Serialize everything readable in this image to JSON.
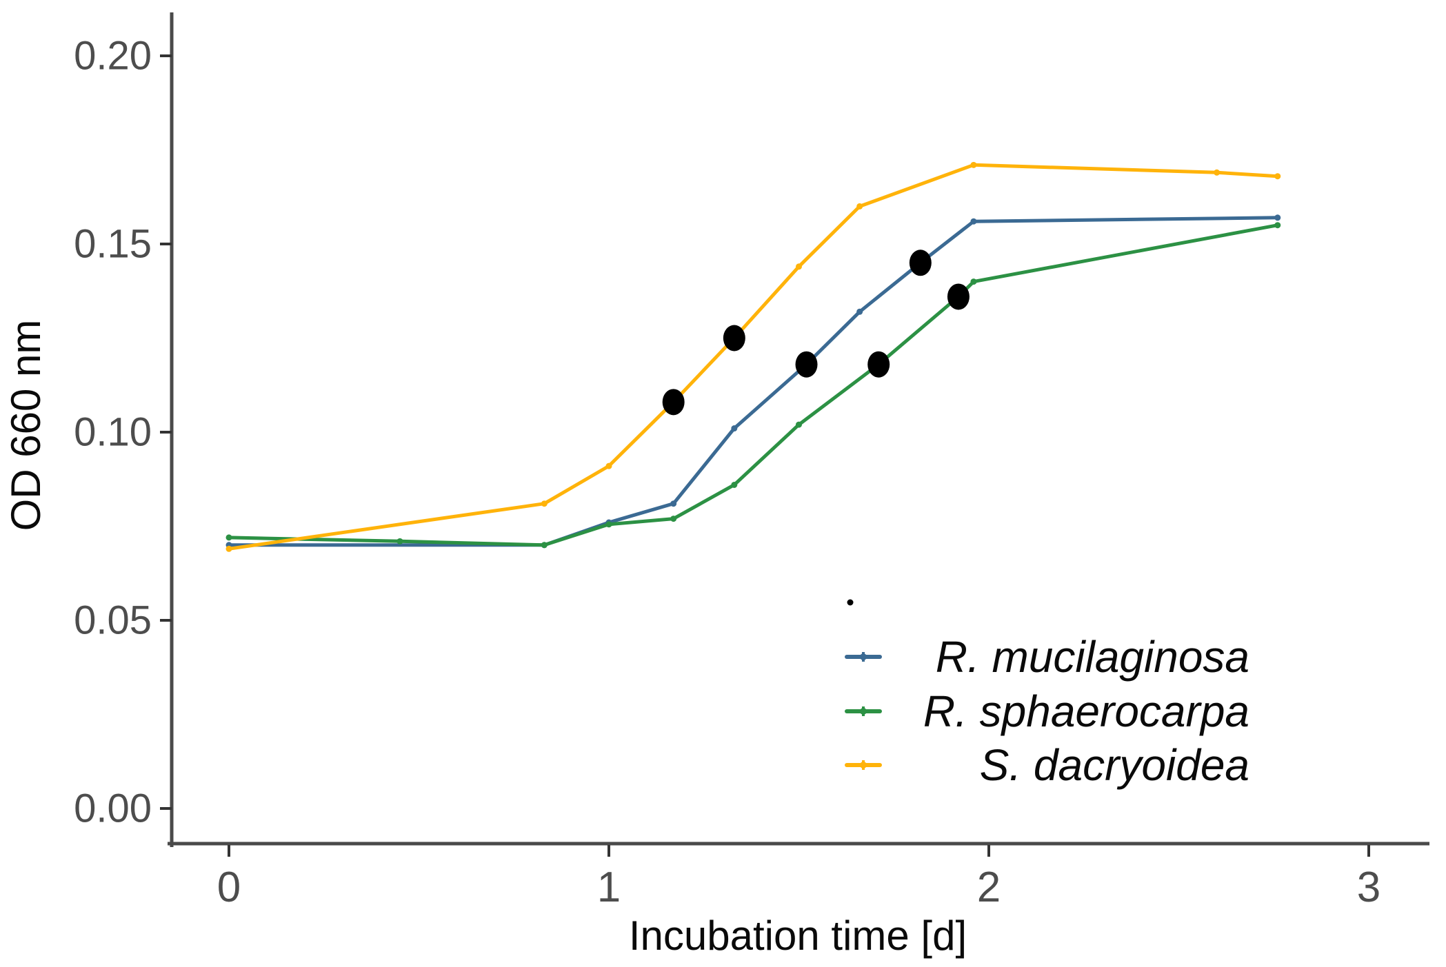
{
  "figure": {
    "background": "#ffffff",
    "axis_line_color": "#4a4a4a",
    "tick_color": "#333333",
    "tick_label_color": "#4d4d4d",
    "text_color": "#0a0a0a"
  },
  "axes": {
    "x": {
      "title": "Incubation time [d]",
      "tick_labels": [
        "0",
        "1",
        "2",
        "3"
      ],
      "tick_values": [
        0,
        1,
        2,
        3
      ]
    },
    "y": {
      "title": "OD 660 nm",
      "tick_labels": [
        "0.00",
        "0.05",
        "0.10",
        "0.15",
        "0.20"
      ],
      "tick_values": [
        0,
        0.05,
        0.1,
        0.15,
        0.2
      ]
    }
  },
  "legend": {
    "position": "inside-bottom-right",
    "unlabeled_dot_key_color": "#000000",
    "entries": [
      {
        "label": "R. mucilaginosa",
        "color": "#3B6A93"
      },
      {
        "label": "R. sphaerocarpa",
        "color": "#2C9144"
      },
      {
        "label": "S. dacryoidea",
        "color": "#FFB30A"
      }
    ]
  },
  "chart_data": {
    "type": "line",
    "title": "",
    "xlabel": "Incubation time [d]",
    "ylabel": "OD 660 nm",
    "xlim": [
      -0.15,
      3.16
    ],
    "ylim": [
      -0.009,
      0.211
    ],
    "grid": false,
    "legend_position": "inside bottom right",
    "series": [
      {
        "name": "R. mucilaginosa",
        "color": "#3B6A93",
        "points": [
          [
            0,
            0.07
          ],
          [
            0.83,
            0.07
          ],
          [
            1.0,
            0.076
          ],
          [
            1.17,
            0.081
          ],
          [
            1.33,
            0.101
          ],
          [
            1.52,
            0.118
          ],
          [
            1.66,
            0.132
          ],
          [
            1.82,
            0.145
          ],
          [
            1.96,
            0.156
          ],
          [
            2.76,
            0.157
          ]
        ]
      },
      {
        "name": "R. sphaerocarpa",
        "color": "#2C9144",
        "points": [
          [
            0,
            0.072
          ],
          [
            0.45,
            0.071
          ],
          [
            0.83,
            0.07
          ],
          [
            1.0,
            0.0755
          ],
          [
            1.17,
            0.077
          ],
          [
            1.33,
            0.086
          ],
          [
            1.5,
            0.102
          ],
          [
            1.71,
            0.118
          ],
          [
            1.92,
            0.136
          ],
          [
            1.96,
            0.14
          ],
          [
            2.76,
            0.155
          ]
        ]
      },
      {
        "name": "S. dacryoidea",
        "color": "#FFB30A",
        "points": [
          [
            0,
            0.069
          ],
          [
            0.83,
            0.081
          ],
          [
            1.0,
            0.091
          ],
          [
            1.17,
            0.108
          ],
          [
            1.33,
            0.125
          ],
          [
            1.5,
            0.144
          ],
          [
            1.66,
            0.16
          ],
          [
            1.96,
            0.171
          ],
          [
            2.6,
            0.169
          ],
          [
            2.76,
            0.168
          ]
        ]
      }
    ],
    "highlight_dots": {
      "description": "large black sampling dots drawn on top of the curves",
      "color": "#000000",
      "points": [
        {
          "series": "S. dacryoidea",
          "t": 1.17,
          "od": 0.108
        },
        {
          "series": "S. dacryoidea",
          "t": 1.33,
          "od": 0.125
        },
        {
          "series": "R. mucilaginosa",
          "t": 1.52,
          "od": 0.118
        },
        {
          "series": "R. mucilaginosa",
          "t": 1.82,
          "od": 0.145
        },
        {
          "series": "R. sphaerocarpa",
          "t": 1.71,
          "od": 0.118
        },
        {
          "series": "R. sphaerocarpa",
          "t": 1.92,
          "od": 0.136
        }
      ]
    }
  }
}
